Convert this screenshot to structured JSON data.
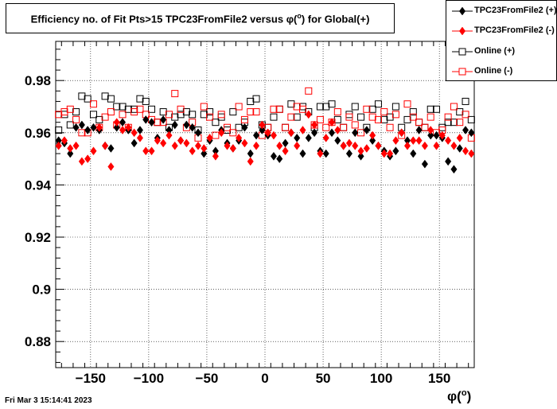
{
  "page": {
    "title_prefix": "Efficiency no. of Fit Pts>15 TPC23FromFile2 versus ",
    "title_symbol": "φ(",
    "title_sup": "o",
    "title_suffix": ") for Global(+)",
    "timestamp": "Fri Mar  3 15:14:41 2023",
    "xaxis_symbol": "φ(",
    "xaxis_sup": "o",
    "xaxis_close": ")"
  },
  "legend": [
    {
      "label": "TPC23FromFile2 (+)",
      "color": "#000000",
      "marker": "diamond-filled"
    },
    {
      "label": "TPC23FromFile2 (-)",
      "color": "#ff0000",
      "marker": "diamond-filled"
    },
    {
      "label": "Online (+)",
      "color": "#000000",
      "marker": "square-open"
    },
    {
      "label": "Online (-)",
      "color": "#ff0000",
      "marker": "square-open"
    }
  ],
  "chart_data": {
    "type": "scatter",
    "title": "Efficiency no. of Fit Pts>15 TPC23FromFile2 versus φ(o) for Global(+)",
    "xlabel": "φ(o)",
    "ylabel": "",
    "xlim": [
      -180,
      180
    ],
    "ylim": [
      0.87,
      0.995
    ],
    "xticks": [
      -150,
      -100,
      -50,
      0,
      50,
      100,
      150
    ],
    "xtick_labels": [
      "−150",
      "−100",
      "−50",
      "0",
      "50",
      "100",
      "150"
    ],
    "yticks": [
      0.88,
      0.9,
      0.92,
      0.94,
      0.96,
      0.98
    ],
    "ytick_labels": [
      "0.88",
      "0.9",
      "0.92",
      "0.94",
      "0.96",
      "0.98"
    ],
    "grid": true,
    "legend_position": "top-right",
    "x": [
      -177.5,
      -172.5,
      -167.5,
      -162.5,
      -157.5,
      -152.5,
      -147.5,
      -142.5,
      -137.5,
      -132.5,
      -127.5,
      -122.5,
      -117.5,
      -112.5,
      -107.5,
      -102.5,
      -97.5,
      -92.5,
      -87.5,
      -82.5,
      -77.5,
      -72.5,
      -67.5,
      -62.5,
      -57.5,
      -52.5,
      -47.5,
      -42.5,
      -37.5,
      -32.5,
      -27.5,
      -22.5,
      -17.5,
      -12.5,
      -7.5,
      -2.5,
      2.5,
      7.5,
      12.5,
      17.5,
      22.5,
      27.5,
      32.5,
      37.5,
      42.5,
      47.5,
      52.5,
      57.5,
      62.5,
      67.5,
      72.5,
      77.5,
      82.5,
      87.5,
      92.5,
      97.5,
      102.5,
      107.5,
      112.5,
      117.5,
      122.5,
      127.5,
      132.5,
      137.5,
      142.5,
      147.5,
      152.5,
      157.5,
      162.5,
      167.5,
      172.5,
      177.5
    ],
    "series": [
      {
        "name": "TPC23FromFile2 (+)",
        "color": "#000000",
        "marker": "diamond-filled",
        "values": [
          0.957,
          0.956,
          0.952,
          0.962,
          0.963,
          0.961,
          0.962,
          0.961,
          0.955,
          0.954,
          0.962,
          0.964,
          0.961,
          0.956,
          0.961,
          0.965,
          0.964,
          0.958,
          0.965,
          0.961,
          0.963,
          0.957,
          0.963,
          0.962,
          0.96,
          0.952,
          0.957,
          0.953,
          0.961,
          0.956,
          0.954,
          0.957,
          0.962,
          0.952,
          0.959,
          0.961,
          0.959,
          0.951,
          0.95,
          0.956,
          0.96,
          0.958,
          0.952,
          0.958,
          0.96,
          0.953,
          0.952,
          0.96,
          0.957,
          0.955,
          0.952,
          0.96,
          0.951,
          0.961,
          0.957,
          0.955,
          0.953,
          0.951,
          0.953,
          0.96,
          0.957,
          0.952,
          0.961,
          0.948,
          0.959,
          0.959,
          0.958,
          0.949,
          0.946,
          0.954,
          0.961,
          0.96
        ]
      },
      {
        "name": "TPC23FromFile2 (-)",
        "color": "#ff0000",
        "marker": "diamond-filled",
        "values": [
          0.955,
          0.957,
          0.954,
          0.955,
          0.949,
          0.95,
          0.953,
          0.962,
          0.955,
          0.947,
          0.964,
          0.961,
          0.962,
          0.96,
          0.958,
          0.953,
          0.953,
          0.957,
          0.956,
          0.959,
          0.955,
          0.957,
          0.956,
          0.953,
          0.955,
          0.954,
          0.958,
          0.951,
          0.96,
          0.955,
          0.954,
          0.958,
          0.956,
          0.949,
          0.955,
          0.963,
          0.96,
          0.959,
          0.955,
          0.953,
          0.96,
          0.955,
          0.961,
          0.967,
          0.963,
          0.952,
          0.958,
          0.964,
          0.961,
          0.955,
          0.956,
          0.955,
          0.953,
          0.954,
          0.959,
          0.955,
          0.952,
          0.952,
          0.957,
          0.96,
          0.955,
          0.957,
          0.957,
          0.955,
          0.961,
          0.955,
          0.959,
          0.957,
          0.955,
          0.958,
          0.953,
          0.952
        ]
      },
      {
        "name": "Online (+)",
        "color": "#000000",
        "marker": "square-open",
        "values": [
          0.961,
          0.967,
          0.963,
          0.968,
          0.974,
          0.973,
          0.967,
          0.965,
          0.974,
          0.973,
          0.97,
          0.97,
          0.969,
          0.969,
          0.973,
          0.972,
          0.969,
          0.964,
          0.968,
          0.962,
          0.966,
          0.967,
          0.968,
          0.967,
          0.961,
          0.967,
          0.968,
          0.964,
          0.966,
          0.961,
          0.968,
          0.962,
          0.964,
          0.972,
          0.973,
          0.963,
          0.962,
          0.966,
          0.969,
          0.962,
          0.971,
          0.966,
          0.97,
          0.968,
          0.962,
          0.97,
          0.97,
          0.971,
          0.965,
          0.962,
          0.967,
          0.97,
          0.966,
          0.962,
          0.969,
          0.971,
          0.965,
          0.966,
          0.97,
          0.962,
          0.965,
          0.968,
          0.964,
          0.962,
          0.969,
          0.969,
          0.962,
          0.964,
          0.964,
          0.968,
          0.972,
          0.965
        ]
      },
      {
        "name": "Online (-)",
        "color": "#ff0000",
        "marker": "square-open",
        "values": [
          0.967,
          0.968,
          0.969,
          0.965,
          0.96,
          0.96,
          0.971,
          0.962,
          0.966,
          0.968,
          0.963,
          0.967,
          0.962,
          0.968,
          0.969,
          0.967,
          0.965,
          0.964,
          0.964,
          0.967,
          0.975,
          0.969,
          0.962,
          0.964,
          0.958,
          0.97,
          0.966,
          0.959,
          0.967,
          0.962,
          0.96,
          0.97,
          0.965,
          0.968,
          0.968,
          0.959,
          0.962,
          0.969,
          0.969,
          0.962,
          0.966,
          0.97,
          0.969,
          0.976,
          0.963,
          0.965,
          0.962,
          0.964,
          0.968,
          0.962,
          0.966,
          0.963,
          0.96,
          0.969,
          0.966,
          0.965,
          0.968,
          0.962,
          0.967,
          0.959,
          0.971,
          0.966,
          0.964,
          0.962,
          0.966,
          0.96,
          0.961,
          0.966,
          0.97,
          0.964,
          0.967,
          0.958
        ]
      }
    ]
  }
}
